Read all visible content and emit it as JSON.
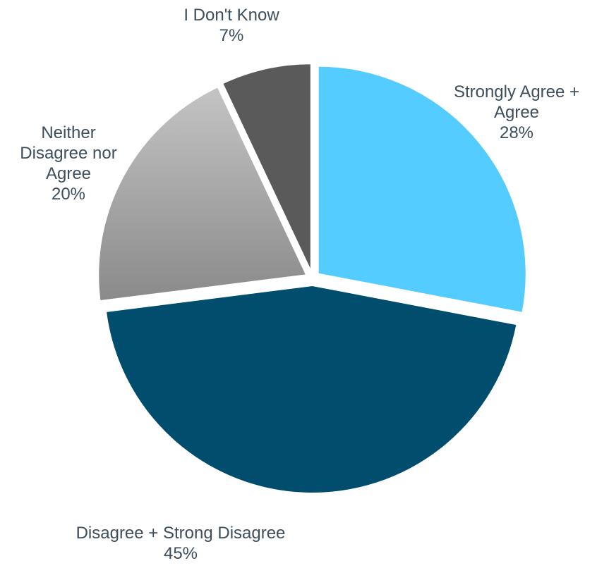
{
  "chart_data": {
    "type": "pie",
    "start_angle_deg": 0,
    "direction": "clockwise",
    "exploded": true,
    "slices": [
      {
        "label": "Strongly Agree + Agree",
        "label_lines": [
          "Strongly Agree +",
          "Agree"
        ],
        "value": 28,
        "value_label": "28%",
        "color": "#55ccff"
      },
      {
        "label": "Disagree + Strong Disagree",
        "label_lines": [
          "Disagree + Strong Disagree"
        ],
        "value": 45,
        "value_label": "45%",
        "color": "#004d6e"
      },
      {
        "label": "Neither Disagree nor Agree",
        "label_lines": [
          "Neither",
          "Disagree nor",
          "Agree"
        ],
        "value": 20,
        "value_label": "20%",
        "color": "#9e9e9e"
      },
      {
        "label": "I Don't Know",
        "label_lines": [
          "I Don't Know"
        ],
        "value": 7,
        "value_label": "7%",
        "color": "#5a5a5a"
      }
    ]
  }
}
